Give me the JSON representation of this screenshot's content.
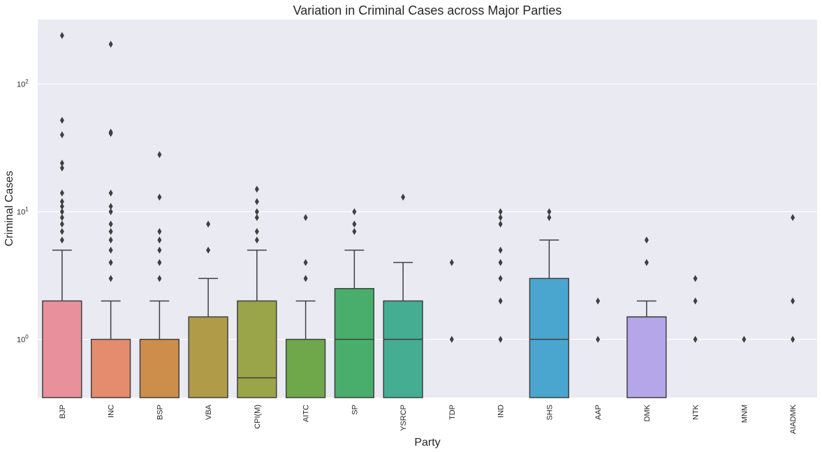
{
  "chart_data": {
    "type": "box",
    "title": "Variation in Criminal Cases across Major Parties",
    "xlabel": "Party",
    "ylabel": "Criminal Cases",
    "yscale": "log",
    "ylim": [
      0.35,
      320
    ],
    "grid": true,
    "y_ticks": [
      {
        "value": 1,
        "base": "10",
        "exp": "0"
      },
      {
        "value": 10,
        "base": "10",
        "exp": "1"
      },
      {
        "value": 100,
        "base": "10",
        "exp": "2"
      }
    ],
    "background": "#eaeaf2",
    "series": [
      {
        "name": "BJP",
        "color": "#e8909c",
        "q1": 0.35,
        "median": 0.35,
        "q3": 2,
        "whisker_low": 0.35,
        "whisker_high": 5,
        "outliers": [
          6,
          7,
          8,
          9,
          10,
          11,
          12,
          14,
          22,
          24,
          40,
          52,
          240
        ]
      },
      {
        "name": "INC",
        "color": "#e58c6e",
        "q1": 0.35,
        "median": 0.35,
        "q3": 1,
        "whisker_low": 0.35,
        "whisker_high": 2,
        "outliers": [
          3,
          4,
          5,
          6,
          7,
          8,
          10,
          11,
          14,
          41,
          42,
          205
        ]
      },
      {
        "name": "BSP",
        "color": "#cc8e4a",
        "q1": 0.35,
        "median": 0.35,
        "q3": 1,
        "whisker_low": 0.35,
        "whisker_high": 2,
        "outliers": [
          3,
          4,
          5,
          6,
          7,
          13,
          28
        ]
      },
      {
        "name": "VBA",
        "color": "#b09b48",
        "q1": 0.35,
        "median": 0.35,
        "q3": 1.5,
        "whisker_low": 0.35,
        "whisker_high": 3,
        "outliers": [
          5,
          8
        ]
      },
      {
        "name": "CPI(M)",
        "color": "#9aa448",
        "q1": 0.35,
        "median": 0.5,
        "q3": 2,
        "whisker_low": 0.35,
        "whisker_high": 5,
        "outliers": [
          6,
          7,
          9,
          10,
          12,
          15
        ]
      },
      {
        "name": "AITC",
        "color": "#6fa84a",
        "q1": 0.35,
        "median": 0.35,
        "q3": 1,
        "whisker_low": 0.35,
        "whisker_high": 2,
        "outliers": [
          3,
          4,
          9
        ]
      },
      {
        "name": "SP",
        "color": "#49ae6b",
        "q1": 0.35,
        "median": 1,
        "q3": 2.5,
        "whisker_low": 0.35,
        "whisker_high": 5,
        "outliers": [
          7,
          8,
          10
        ]
      },
      {
        "name": "YSRCP",
        "color": "#45ad92",
        "q1": 0.35,
        "median": 1,
        "q3": 2,
        "whisker_low": 0.35,
        "whisker_high": 4,
        "outliers": [
          13
        ]
      },
      {
        "name": "TDP",
        "color": "#46aaaa",
        "q1": null,
        "median": null,
        "q3": null,
        "whisker_low": null,
        "whisker_high": null,
        "outliers": [
          1,
          4
        ]
      },
      {
        "name": "IND",
        "color": "#48aabf",
        "q1": null,
        "median": null,
        "q3": null,
        "whisker_low": null,
        "whisker_high": null,
        "outliers": [
          1,
          2,
          3,
          4,
          5,
          8,
          9,
          10
        ]
      },
      {
        "name": "SHS",
        "color": "#4aa6cf",
        "q1": 0.35,
        "median": 1,
        "q3": 3,
        "whisker_low": 0.35,
        "whisker_high": 6,
        "outliers": [
          9,
          10
        ]
      },
      {
        "name": "AAP",
        "color": "#7aa6e0",
        "q1": null,
        "median": null,
        "q3": null,
        "whisker_low": null,
        "whisker_high": null,
        "outliers": [
          1,
          2
        ]
      },
      {
        "name": "DMK",
        "color": "#b5a6ea",
        "q1": 0.35,
        "median": 1.5,
        "q3": 1.5,
        "whisker_low": 0.35,
        "whisker_high": 2,
        "outliers": [
          4,
          6
        ]
      },
      {
        "name": "NTK",
        "color": "#d596e6",
        "q1": null,
        "median": null,
        "q3": null,
        "whisker_low": null,
        "whisker_high": null,
        "outliers": [
          1,
          2,
          3
        ]
      },
      {
        "name": "MNM",
        "color": "#e090d4",
        "q1": null,
        "median": null,
        "q3": null,
        "whisker_low": null,
        "whisker_high": null,
        "outliers": [
          1
        ]
      },
      {
        "name": "AIADMK",
        "color": "#e692b8",
        "q1": null,
        "median": null,
        "q3": null,
        "whisker_low": null,
        "whisker_high": null,
        "outliers": [
          1,
          2,
          9
        ]
      }
    ]
  }
}
